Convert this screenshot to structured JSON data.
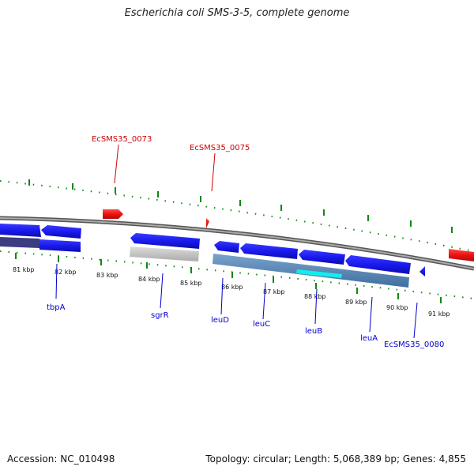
{
  "title": "Escherichia coli SMS-3-5, complete genome",
  "footer": {
    "accession": "Accession: NC_010498",
    "summary": "Topology: circular; Length: 5,068,389 bp; Genes: 4,855"
  },
  "colors": {
    "forward_gene": "#ee1111",
    "reverse_gene": "#1a1aee",
    "cds_band": "#5a88b8",
    "highlight": "#11eeee",
    "pseudo_gene": "#c8c8c8",
    "tick": "#118811",
    "backbone": "#888888",
    "label_forward": "#cc0000",
    "label_reverse": "#0000cc"
  },
  "axis": {
    "ticks": [
      "81 kbp",
      "82 kbp",
      "83 kbp",
      "84 kbp",
      "85 kbp",
      "86 kbp",
      "87 kbp",
      "88 kbp",
      "89 kbp",
      "90 kbp",
      "91 kbp"
    ]
  },
  "labels": {
    "forward": [
      "EcSMS35_0073",
      "EcSMS35_0075"
    ],
    "reverse": [
      "tbpA",
      "sgrR",
      "leuD",
      "leuC",
      "leuB",
      "leuA",
      "EcSMS35_0080"
    ]
  }
}
